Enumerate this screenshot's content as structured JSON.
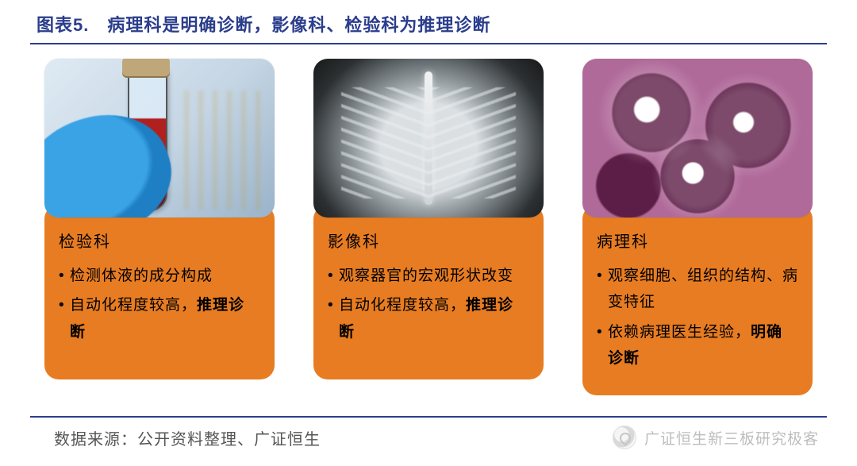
{
  "title": "图表5.　病理科是明确诊断，影像科、检验科为推理诊断",
  "cards": [
    {
      "heading": "检验科",
      "line1": "检测体液的成分构成",
      "line2a": "自动化程度较高，",
      "line2b": "推理诊断",
      "image_alt": "lab-test-tube"
    },
    {
      "heading": "影像科",
      "line1": "观察器官的宏观形状改变",
      "line2a": "自动化程度较高，",
      "line2b": "推理诊断",
      "image_alt": "chest-xray"
    },
    {
      "heading": "病理科",
      "line1": "观察细胞、组织的结构、病变特征",
      "line2a": "依赖病理医生经验，",
      "line2b": "明确诊断",
      "image_alt": "histology-slide"
    }
  ],
  "source": "数据来源：公开资料整理、广证恒生",
  "watermark": "广证恒生新三板研究极客",
  "colors": {
    "accent": "#2b3d8c",
    "card_bg": "#e77c22",
    "text": "#000000",
    "source_text": "#555555"
  }
}
